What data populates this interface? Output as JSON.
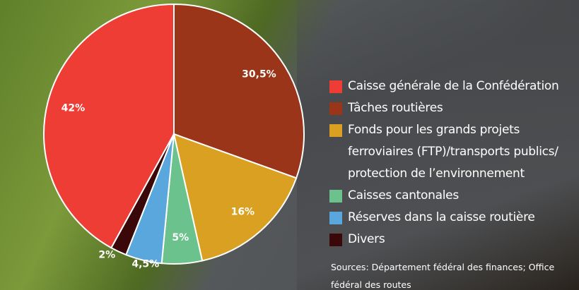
{
  "chart_data": {
    "type": "pie",
    "categories": [
      "Caisse générale de la Confédération",
      "Tâches routières",
      "Fonds pour les grands projets ferroviaires (FTP)/transports publics/ protection de l’environnement",
      "Caisses cantonales",
      "Réserves dans la caisse routière",
      "Divers"
    ],
    "values": [
      42,
      30.5,
      16,
      5,
      4.5,
      2
    ],
    "value_labels": [
      "42%",
      "30,5%",
      "16%",
      "5%",
      "4,5%",
      "2%"
    ],
    "colors": [
      "#ee3d35",
      "#9a3519",
      "#d9a022",
      "#6cc28c",
      "#5aa7dd",
      "#3a0808"
    ],
    "source": "Sources: Département fédéral des finances; Office fédéral des routes"
  }
}
